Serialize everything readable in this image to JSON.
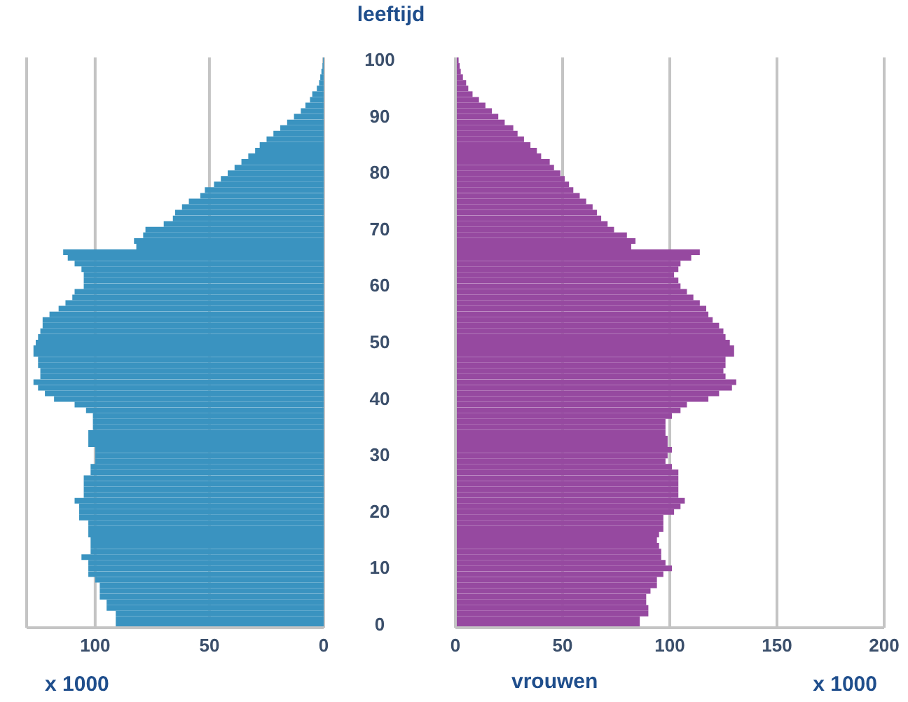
{
  "chart_data": [
    {
      "type": "bar",
      "orientation": "horizontal",
      "xlabel": "x 1000",
      "tick_labels": "x",
      "grid": "x",
      "categories": [
        "100",
        null,
        null,
        null,
        null,
        null,
        null,
        null,
        null,
        null,
        "90",
        null,
        null,
        null,
        null,
        null,
        null,
        null,
        null,
        null,
        "80",
        null,
        null,
        null,
        null,
        null,
        null,
        null,
        null,
        null,
        "70",
        null,
        null,
        null,
        null,
        null,
        null,
        null,
        null,
        null,
        "60",
        null,
        null,
        null,
        null,
        null,
        null,
        null,
        null,
        null,
        "50",
        null,
        null,
        null,
        null,
        null,
        null,
        null,
        null,
        null,
        "40",
        null,
        null,
        null,
        null,
        null,
        null,
        null,
        null,
        null,
        "30",
        null,
        null,
        null,
        null,
        null,
        null,
        null,
        null,
        null,
        "20",
        null,
        null,
        null,
        null,
        null,
        null,
        null,
        null,
        null,
        "10",
        null,
        null,
        null,
        null,
        null,
        null,
        null,
        null,
        null,
        "0"
      ],
      "series": [
        {
          "color": "#3a93c0",
          "values": [
            0.3,
            0.5,
            1,
            1.5,
            2,
            3,
            5,
            6,
            8,
            10,
            13,
            16,
            19,
            22,
            25,
            28,
            30,
            33,
            36,
            39,
            42,
            45,
            48,
            52,
            54,
            59,
            62,
            65,
            66,
            70,
            78,
            79,
            83,
            82,
            114,
            112,
            109,
            106,
            105,
            105,
            105,
            109,
            110,
            113,
            116,
            120,
            123,
            123,
            124,
            125,
            126,
            127,
            127,
            125,
            125,
            124,
            124,
            127,
            125,
            122,
            118,
            109,
            104,
            101,
            101,
            101,
            103,
            103,
            103,
            100,
            100,
            100,
            102,
            102,
            105,
            105,
            105,
            105,
            109,
            107,
            107,
            107,
            103,
            103,
            103,
            102,
            102,
            102,
            106,
            103,
            103,
            103,
            100,
            98,
            98,
            98,
            95,
            95,
            91,
            91,
            91
          ]
        }
      ],
      "xlim": [
        130,
        0
      ],
      "xticks": [
        100,
        50,
        0
      ]
    },
    {
      "type": "bar",
      "orientation": "horizontal",
      "ylabel": "leeftijd",
      "xlabel": "x 1000",
      "annotations": [
        "vrouwen"
      ],
      "grid": "x",
      "categories": [
        "100",
        null,
        null,
        null,
        null,
        null,
        null,
        null,
        null,
        null,
        "90",
        null,
        null,
        null,
        null,
        null,
        null,
        null,
        null,
        null,
        "80",
        null,
        null,
        null,
        null,
        null,
        null,
        null,
        null,
        null,
        "70",
        null,
        null,
        null,
        null,
        null,
        null,
        null,
        null,
        null,
        "60",
        null,
        null,
        null,
        null,
        null,
        null,
        null,
        null,
        null,
        "50",
        null,
        null,
        null,
        null,
        null,
        null,
        null,
        null,
        null,
        "40",
        null,
        null,
        null,
        null,
        null,
        null,
        null,
        null,
        null,
        "30",
        null,
        null,
        null,
        null,
        null,
        null,
        null,
        null,
        null,
        "20",
        null,
        null,
        null,
        null,
        null,
        null,
        null,
        null,
        null,
        "10",
        null,
        null,
        null,
        null,
        null,
        null,
        null,
        null,
        null,
        "0"
      ],
      "series": [
        {
          "color": "#9649a0",
          "values": [
            1.5,
            2,
            2.5,
            3.5,
            5,
            6,
            8,
            11,
            14,
            17,
            20,
            23,
            27,
            29,
            32,
            35,
            38,
            40,
            44,
            46,
            49,
            51,
            53,
            55,
            58,
            61,
            64,
            66,
            68,
            71,
            74,
            80,
            84,
            82,
            114,
            110,
            105,
            104,
            102,
            104,
            105,
            108,
            111,
            114,
            117,
            118,
            120,
            123,
            125,
            126,
            128,
            130,
            130,
            126,
            126,
            125,
            126,
            131,
            129,
            123,
            118,
            108,
            105,
            101,
            98,
            98,
            98,
            99,
            99,
            101,
            99,
            98,
            101,
            104,
            104,
            104,
            104,
            104,
            107,
            105,
            102,
            97,
            97,
            97,
            95,
            94,
            95,
            96,
            96,
            98,
            101,
            97,
            94,
            94,
            91,
            89,
            89,
            90,
            90,
            86,
            86
          ]
        }
      ],
      "xlim": [
        0,
        200
      ],
      "xticks": [
        0,
        50,
        100,
        150,
        200
      ]
    }
  ]
}
